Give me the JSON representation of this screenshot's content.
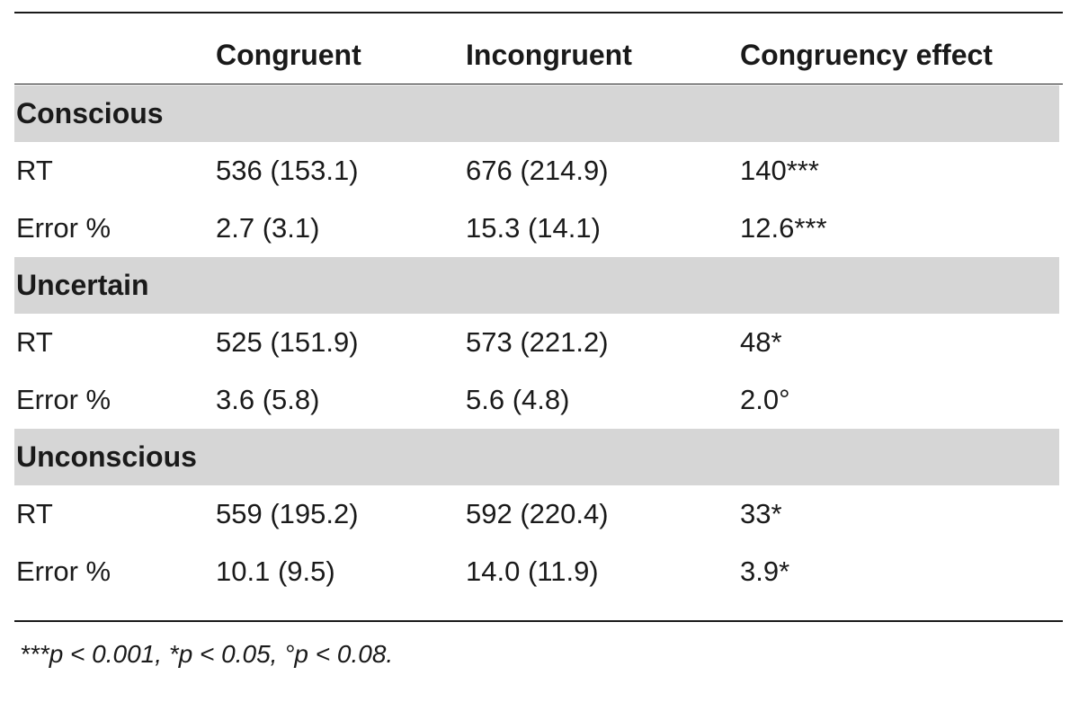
{
  "table": {
    "columns": [
      "",
      "Congruent",
      "Incongruent",
      "Congruency effect"
    ],
    "sections": [
      {
        "label": "Conscious",
        "rows": [
          [
            "RT",
            "536 (153.1)",
            "676 (214.9)",
            "140***"
          ],
          [
            "Error %",
            "2.7 (3.1)",
            "15.3 (14.1)",
            "12.6***"
          ]
        ]
      },
      {
        "label": "Uncertain",
        "rows": [
          [
            "RT",
            "525 (151.9)",
            "573 (221.2)",
            "48*"
          ],
          [
            "Error %",
            "3.6 (5.8)",
            "5.6 (4.8)",
            "2.0°"
          ]
        ]
      },
      {
        "label": "Unconscious",
        "rows": [
          [
            "RT",
            "559 (195.2)",
            "592 (220.4)",
            "33*"
          ],
          [
            "Error %",
            "10.1 (9.5)",
            "14.0 (11.9)",
            "3.9*"
          ]
        ]
      }
    ],
    "footnote": "***p < 0.001, *p < 0.05, °p < 0.08.",
    "section_band_color": "#d6d6d6"
  }
}
